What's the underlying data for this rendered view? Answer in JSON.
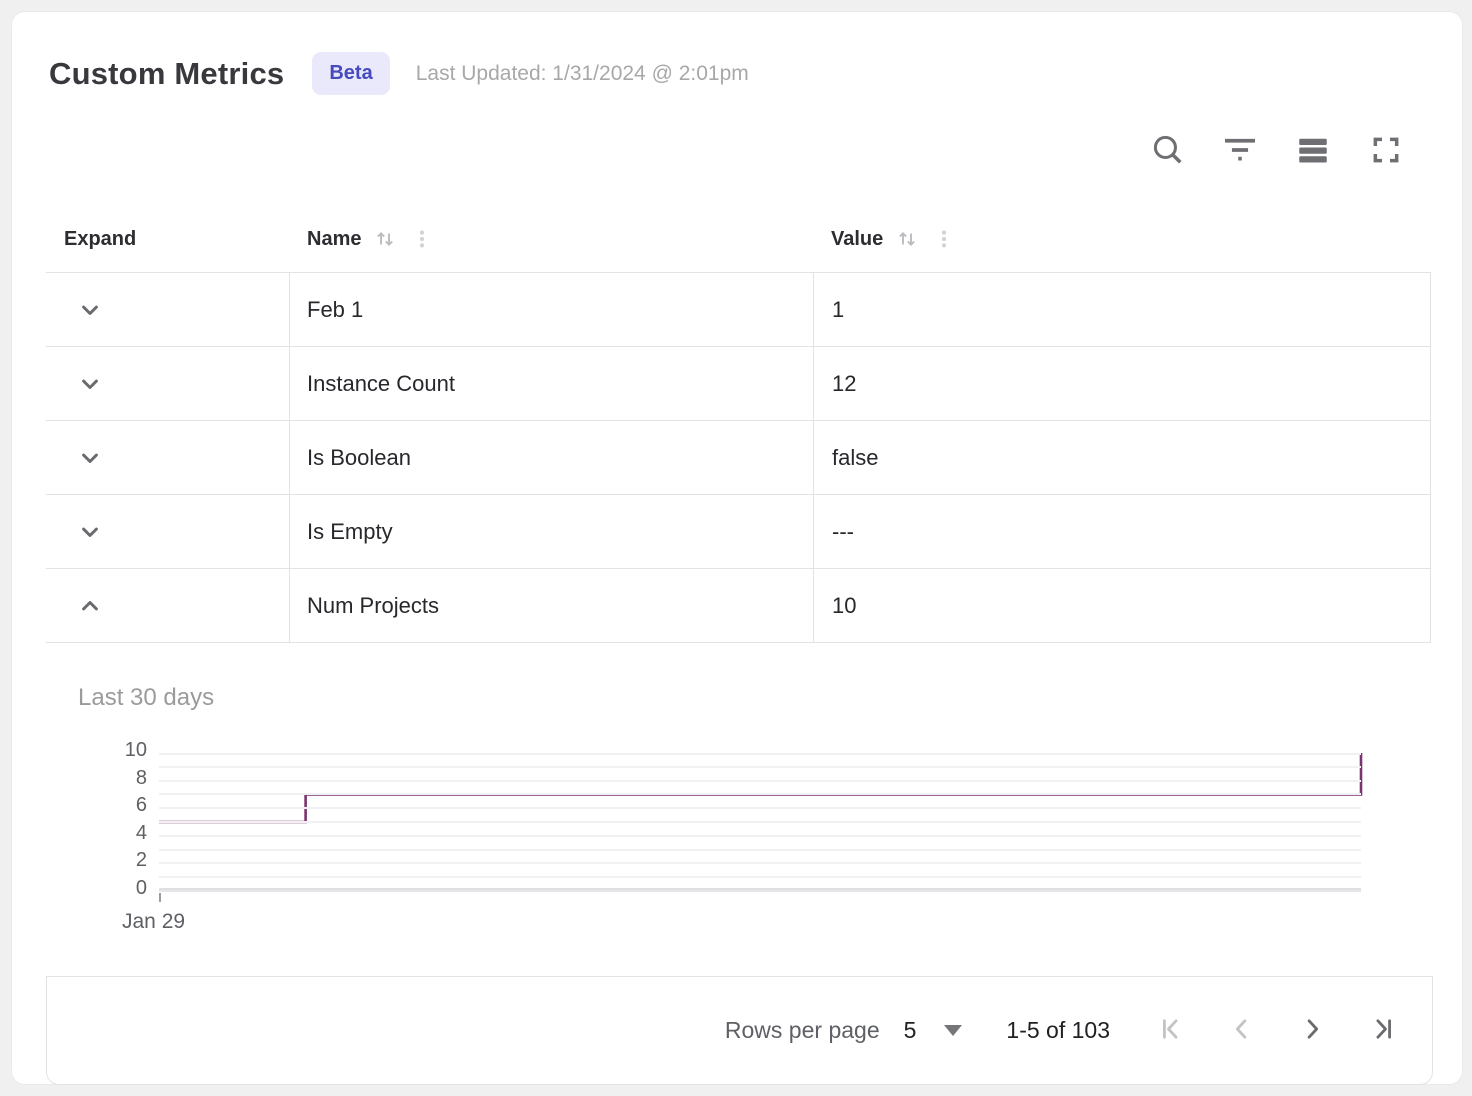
{
  "header": {
    "title": "Custom Metrics",
    "badge": "Beta",
    "last_updated": "Last Updated: 1/31/2024 @ 2:01pm"
  },
  "toolbar": {
    "icons": [
      "search",
      "filter",
      "row-density",
      "fullscreen"
    ]
  },
  "table": {
    "columns": [
      {
        "label": "Expand",
        "sortable": false,
        "menu": false
      },
      {
        "label": "Name",
        "sortable": true,
        "menu": true
      },
      {
        "label": "Value",
        "sortable": true,
        "menu": true
      }
    ],
    "rows": [
      {
        "name": "Feb 1",
        "value": "1",
        "expanded": false
      },
      {
        "name": "Instance Count",
        "value": "12",
        "expanded": false
      },
      {
        "name": "Is Boolean",
        "value": "false",
        "expanded": false
      },
      {
        "name": "Is Empty",
        "value": "---",
        "expanded": false
      },
      {
        "name": "Num Projects",
        "value": "10",
        "expanded": true
      }
    ]
  },
  "chart_data": {
    "type": "line",
    "subtype": "step",
    "title": "Last 30 days",
    "series_name": "Num Projects",
    "ylim": [
      0,
      10
    ],
    "yticks": [
      0,
      2,
      4,
      6,
      8,
      10
    ],
    "grid_step": 1,
    "x_first_tick_label": "Jan 29",
    "line_color": "#7b3470",
    "points_pct_value": [
      [
        0,
        5
      ],
      [
        12.2,
        5
      ],
      [
        12.2,
        7
      ],
      [
        100,
        7
      ],
      [
        100,
        10
      ]
    ]
  },
  "pagination": {
    "rows_per_page_label": "Rows per page",
    "rows_per_page_value": "5",
    "range": "1-5 of 103",
    "first_disabled": true,
    "prev_disabled": true,
    "next_disabled": false,
    "last_disabled": false
  },
  "colors": {
    "accent_line": "#7b3470",
    "badge_bg": "#e9e9fb",
    "badge_text": "#4649c0",
    "border": "#e3e3e5",
    "icon_gray": "#6f6f73",
    "icon_light": "#c3c3c6"
  }
}
